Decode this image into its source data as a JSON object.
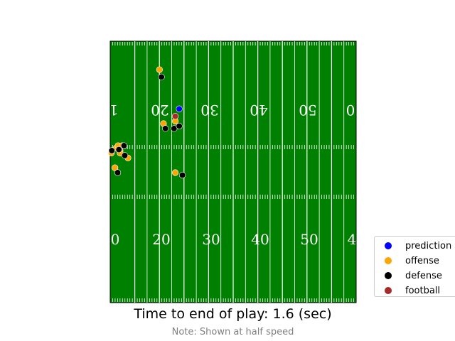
{
  "caption": {
    "time_label": "Time to end of play: 1.6 (sec)",
    "note": "Note: Shown at half speed"
  },
  "field": {
    "color": "#008000",
    "line_color": "#ffffff",
    "yard_numbers_top": [
      "1",
      "20",
      "30",
      "40",
      "50",
      "0"
    ],
    "yard_numbers_bottom": [
      "0",
      "20",
      "30",
      "40",
      "50",
      "4"
    ]
  },
  "legend": {
    "items": [
      {
        "label": "prediction",
        "color": "#0000ff"
      },
      {
        "label": "offense",
        "color": "#ffa500"
      },
      {
        "label": "defense",
        "color": "#000000"
      },
      {
        "label": "football",
        "color": "#a52a2a"
      }
    ]
  },
  "chart_data": {
    "type": "scatter",
    "title": "",
    "xlabel": "",
    "ylabel": "",
    "series": [
      {
        "name": "prediction",
        "color": "#0000ff",
        "points": [
          [
            17.5,
            39.5
          ]
        ]
      },
      {
        "name": "offense",
        "color": "#ffa500",
        "points": [
          [
            12.5,
            47.5
          ],
          [
            13.5,
            36.5
          ],
          [
            16.5,
            37.0
          ],
          [
            16.5,
            26.5
          ],
          [
            0.3,
            30.5
          ],
          [
            1.5,
            31.5
          ],
          [
            2.0,
            32.0
          ],
          [
            2.5,
            31.0
          ],
          [
            3.0,
            32.0
          ],
          [
            2.5,
            30.5
          ],
          [
            1.2,
            27.5
          ],
          [
            4.5,
            29.5
          ]
        ]
      },
      {
        "name": "defense",
        "color": "#000000",
        "points": [
          [
            13.0,
            46.0
          ],
          [
            16.2,
            35.5
          ],
          [
            17.5,
            36.0
          ],
          [
            14.0,
            35.5
          ],
          [
            3.5,
            32.0
          ],
          [
            0.4,
            31.0
          ],
          [
            2.2,
            31.2
          ],
          [
            3.7,
            30.0
          ],
          [
            1.9,
            26.5
          ],
          [
            18.3,
            26.0
          ]
        ]
      },
      {
        "name": "football",
        "color": "#a52a2a",
        "points": [
          [
            16.5,
            38.0
          ]
        ]
      }
    ]
  }
}
